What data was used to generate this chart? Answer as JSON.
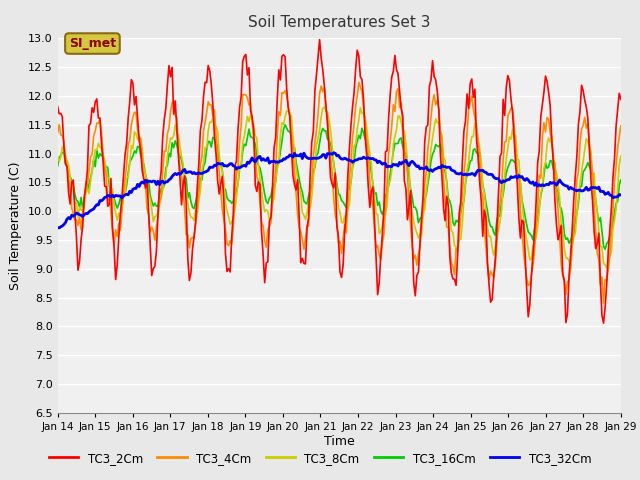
{
  "title": "Soil Temperatures Set 3",
  "xlabel": "Time",
  "ylabel": "Soil Temperature (C)",
  "ylim": [
    6.5,
    13.0
  ],
  "yticks": [
    6.5,
    7.0,
    7.5,
    8.0,
    8.5,
    9.0,
    9.5,
    10.0,
    10.5,
    11.0,
    11.5,
    12.0,
    12.5,
    13.0
  ],
  "xtick_labels": [
    "Jan 14",
    "Jan 15",
    "Jan 16",
    "Jan 17",
    "Jan 18",
    "Jan 19",
    "Jan 20",
    "Jan 21",
    "Jan 22",
    "Jan 23",
    "Jan 24",
    "Jan 25",
    "Jan 26",
    "Jan 27",
    "Jan 28",
    "Jan 29"
  ],
  "series_colors": {
    "TC3_2Cm": "#ff0000",
    "TC3_4Cm": "#ff8c00",
    "TC3_8Cm": "#cccc00",
    "TC3_16Cm": "#00cc00",
    "TC3_32Cm": "#0000ee"
  },
  "annotation_text": "SI_met",
  "annotation_bg": "#d4c840",
  "annotation_border": "#8b6914",
  "bg_outer": "#e8e8e8",
  "bg_plot": "#f0f0f0",
  "grid_color": "white",
  "n_points": 360
}
